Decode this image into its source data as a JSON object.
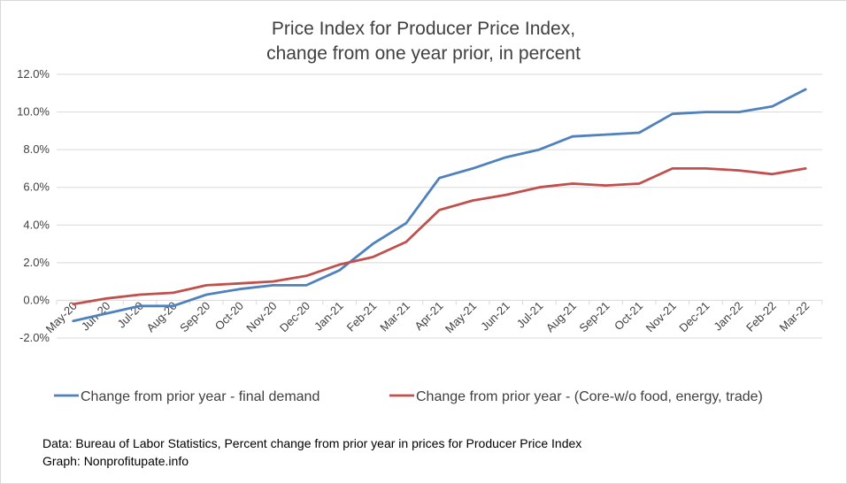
{
  "chart_data": {
    "type": "line",
    "title": [
      "Price Index for Producer Price Index,",
      "change from one year prior, in percent"
    ],
    "categories": [
      "May-20",
      "Jun-20",
      "Jul-20",
      "Aug-20",
      "Sep-20",
      "Oct-20",
      "Nov-20",
      "Dec-20",
      "Jan-21",
      "Feb-21",
      "Mar-21",
      "Apr-21",
      "May-21",
      "Jun-21",
      "Jul-21",
      "Aug-21",
      "Sep-21",
      "Oct-21",
      "Nov-21",
      "Dec-21",
      "Jan-22",
      "Feb-22",
      "Mar-22"
    ],
    "y_ticks": [
      "-2.0%",
      "0.0%",
      "2.0%",
      "4.0%",
      "6.0%",
      "8.0%",
      "10.0%",
      "12.0%"
    ],
    "ylim": [
      -2,
      12
    ],
    "grid": true,
    "legend_position": "bottom",
    "series": [
      {
        "name": "Change from prior year -  final demand",
        "color": "#4f81bd",
        "values": [
          -1.1,
          -0.7,
          -0.3,
          -0.3,
          0.3,
          0.6,
          0.8,
          0.8,
          1.6,
          3.0,
          4.1,
          6.5,
          7.0,
          7.6,
          8.0,
          8.7,
          8.8,
          8.9,
          9.9,
          10.0,
          10.0,
          10.3,
          11.2
        ]
      },
      {
        "name": "Change from prior year -  (Core-w/o food, energy, trade)",
        "color": "#c0504d",
        "values": [
          -0.2,
          0.1,
          0.3,
          0.4,
          0.8,
          0.9,
          1.0,
          1.3,
          1.9,
          2.3,
          3.1,
          4.8,
          5.3,
          5.6,
          6.0,
          6.2,
          6.1,
          6.2,
          7.0,
          7.0,
          6.9,
          6.7,
          7.0
        ]
      }
    ]
  },
  "source": {
    "line1": "Data: Bureau of Labor Statistics, Percent change from prior year in prices for Producer Price Index",
    "line2": "Graph:  Nonprofitupate.info"
  },
  "colors": {
    "gridline": "#d9d9d9",
    "axis_text": "#404040"
  }
}
